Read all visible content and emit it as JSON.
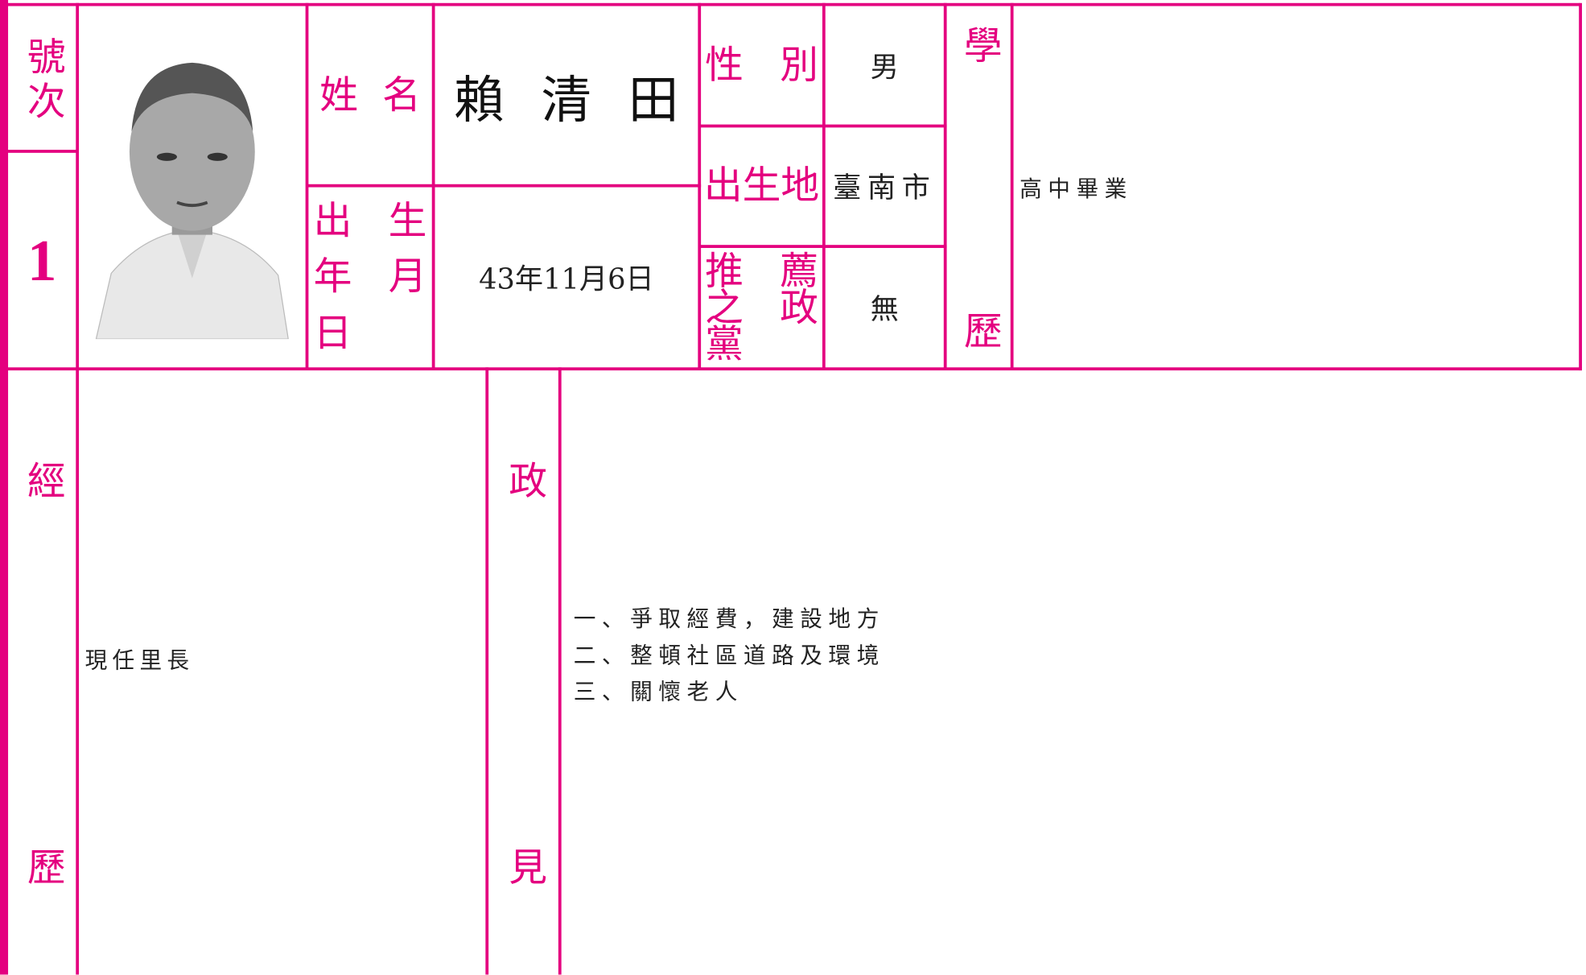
{
  "header": {
    "number_label": "號次",
    "number": "1"
  },
  "name": {
    "label": "姓名",
    "value": "賴清田"
  },
  "birth_date": {
    "label": "出生年月日",
    "value": "43年11月6日"
  },
  "gender": {
    "label": "性別",
    "value": "男"
  },
  "birthplace": {
    "label": "出生地",
    "value": "臺南市"
  },
  "party": {
    "label": "推薦之政黨",
    "value": "無"
  },
  "education": {
    "label": "學歷",
    "value": "高中畢業"
  },
  "experience": {
    "label": "經歷",
    "value": "現任里長"
  },
  "platform": {
    "label": "政見",
    "items": [
      "一、爭取經費，建設地方",
      "二、整頓社區道路及環境",
      "三、關懷老人"
    ]
  }
}
